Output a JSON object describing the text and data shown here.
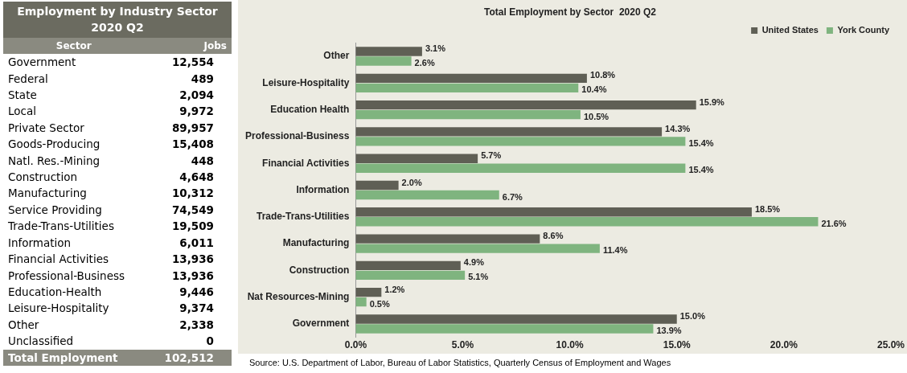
{
  "chart_data": [
    {
      "type": "other",
      "title": "Employment by Industry Sector 2020 Q2",
      "xlabel": "Sector",
      "ylabel": "Jobs",
      "categories": [
        "Government",
        "Federal",
        "State",
        "Local",
        "Private Sector",
        "Goods-Producing",
        "Natl. Res.-Mining",
        "Construction",
        "Manufacturing",
        "Service Providing",
        "Trade-Trans-Utilities",
        "Information",
        "Financial Activities",
        "Professional-Business",
        "Education-Health",
        "Leisure-Hospitality",
        "Other",
        "Unclassified",
        "Total Employment"
      ],
      "annotations": [
        "12,554",
        "489",
        "2,094",
        "9,972",
        "89,957",
        "15,408",
        "448",
        "4,648",
        "10,312",
        "74,549",
        "19,509",
        "6,011",
        "13,936",
        "13,936",
        "9,446",
        "9,374",
        "2,338",
        "0",
        "102,512"
      ]
    },
    {
      "type": "bar",
      "orientation": "horizontal",
      "title": "Total Employment by Sector  2020 Q2",
      "categories": [
        "Other",
        "Leisure-Hospitality",
        "Education Health",
        "Professional-Business",
        "Financial Activities",
        "Information",
        "Trade-Trans-Utilities",
        "Manufacturing",
        "Construction",
        "Nat Resources-Mining",
        "Government"
      ],
      "series": [
        {
          "name": "United States",
          "color": "#5f5f55",
          "values": [
            3.1,
            10.8,
            15.9,
            14.3,
            5.7,
            2.0,
            18.5,
            8.6,
            4.9,
            1.2,
            15.0
          ],
          "value_labels": [
            "3.1%",
            "10.8%",
            "15.9%",
            "14.3%",
            "5.7%",
            "2.0%",
            "18.5%",
            "8.6%",
            "4.9%",
            "1.2%",
            "15.0%"
          ]
        },
        {
          "name": "York County",
          "color": "#7fb47f",
          "values": [
            2.6,
            10.4,
            10.5,
            15.4,
            15.4,
            6.7,
            21.6,
            11.4,
            5.1,
            0.5,
            13.9
          ],
          "value_labels": [
            "2.6%",
            "10.4%",
            "10.5%",
            "15.4%",
            "15.4%",
            "6.7%",
            "21.6%",
            "11.4%",
            "5.1%",
            "0.5%",
            "13.9%"
          ]
        }
      ],
      "xlim": [
        0,
        25
      ],
      "xticks": [
        {
          "value": 0,
          "label": "0.0%"
        },
        {
          "value": 5,
          "label": "5.0%"
        },
        {
          "value": 10,
          "label": "10.0%"
        },
        {
          "value": 15,
          "label": "15.0%"
        },
        {
          "value": 20,
          "label": "20.0%"
        },
        {
          "value": 25,
          "label": "25.0%"
        }
      ],
      "legend": "top right",
      "grid": false,
      "annotations": [
        "Source: U.S. Department of Labor, Bureau of Labor Statistics, Quarterly Census of Employment and Wages"
      ]
    }
  ]
}
